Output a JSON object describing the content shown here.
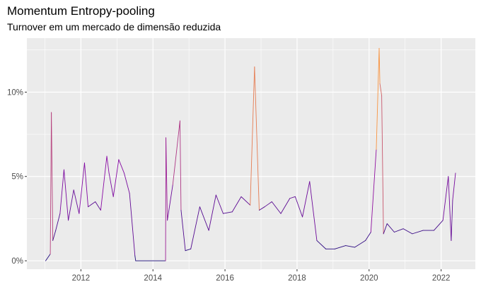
{
  "chart_data": {
    "type": "line",
    "title": "Momentum Entropy-pooling",
    "subtitle": "Turnover em um mercado de dimensão reduzida",
    "xlabel": "",
    "ylabel": "",
    "x_ticks": [
      "2012",
      "2014",
      "2016",
      "2018",
      "2020",
      "2022"
    ],
    "y_ticks": [
      "0%",
      "5%",
      "10%"
    ],
    "xlim": [
      2010.5,
      2022.95
    ],
    "ylim": [
      -0.005,
      0.132
    ],
    "grid": true,
    "legend": "none",
    "color_scale": {
      "low": "#1a0a7a",
      "mid": "#8b0aa5",
      "high": "#f89441"
    },
    "series": [
      {
        "x": [
          2011.02,
          2011.15,
          2011.18,
          2011.22,
          2011.3,
          2011.42,
          2011.53,
          2011.65,
          2011.8,
          2011.95,
          2012.1,
          2012.2,
          2012.4,
          2012.55,
          2012.72,
          2012.78,
          2012.9,
          2013.05,
          2013.2,
          2013.35,
          2013.5,
          2013.52,
          2014.0,
          2014.35,
          2014.36,
          2014.4,
          2014.55,
          2014.75,
          2014.78,
          2014.9,
          2015.05,
          2015.3,
          2015.55,
          2015.75,
          2015.95,
          2016.2,
          2016.45,
          2016.7,
          2016.82,
          2016.95,
          2017.1,
          2017.3,
          2017.55,
          2017.8,
          2017.95,
          2018.15,
          2018.35,
          2018.55,
          2018.8,
          2019.05,
          2019.35,
          2019.6,
          2019.9,
          2020.05,
          2020.2,
          2020.28,
          2020.3,
          2020.35,
          2020.4,
          2020.5,
          2020.7,
          2020.95,
          2021.2,
          2021.5,
          2021.8,
          2022.05,
          2022.2,
          2022.28,
          2022.32,
          2022.4
        ],
        "y": [
          0.0,
          0.004,
          0.088,
          0.012,
          0.018,
          0.028,
          0.054,
          0.024,
          0.042,
          0.028,
          0.058,
          0.032,
          0.035,
          0.03,
          0.062,
          0.052,
          0.038,
          0.06,
          0.052,
          0.04,
          0.003,
          0.0,
          0.0,
          0.0,
          0.073,
          0.024,
          0.045,
          0.083,
          0.03,
          0.006,
          0.007,
          0.032,
          0.018,
          0.039,
          0.028,
          0.029,
          0.038,
          0.033,
          0.115,
          0.03,
          0.032,
          0.035,
          0.028,
          0.037,
          0.038,
          0.026,
          0.047,
          0.012,
          0.007,
          0.007,
          0.009,
          0.008,
          0.012,
          0.017,
          0.066,
          0.126,
          0.105,
          0.098,
          0.016,
          0.022,
          0.017,
          0.019,
          0.016,
          0.018,
          0.018,
          0.024,
          0.05,
          0.012,
          0.036,
          0.052
        ]
      }
    ]
  }
}
